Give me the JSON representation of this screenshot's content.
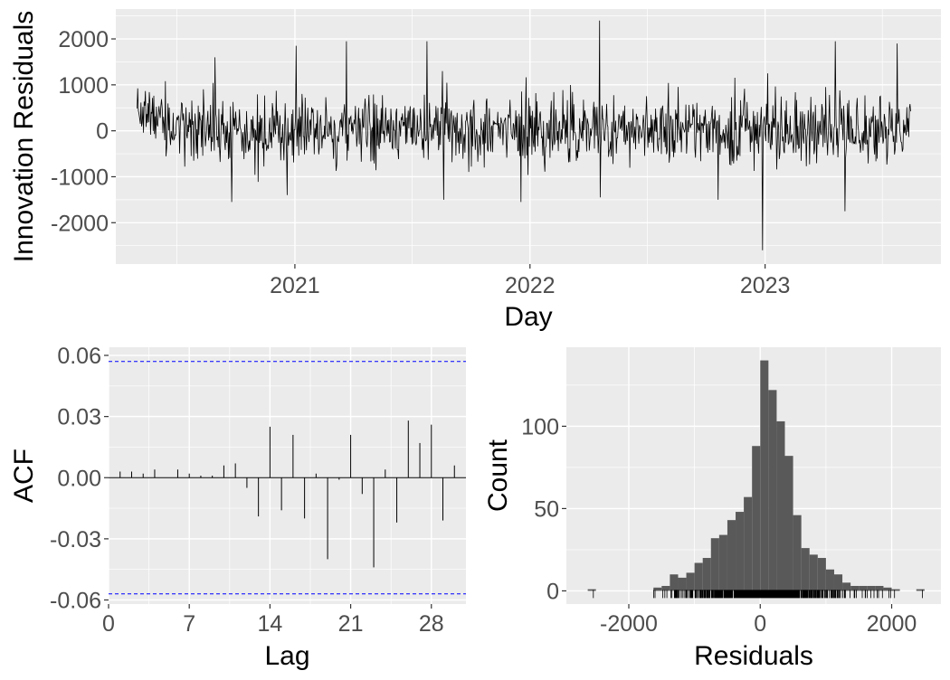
{
  "colors": {
    "panel_bg": "#ebebeb",
    "grid": "#ffffff",
    "line": "#000000",
    "bar": "#595959",
    "ci": "#0000ff",
    "tick_text": "#4d4d4d"
  },
  "chart_data": [
    {
      "type": "line",
      "xlabel": "Day",
      "ylabel": "Innovation Residuals",
      "xlim": [
        "2020-03-29",
        "2023-10-01"
      ],
      "ylim": [
        -2900,
        2650
      ],
      "x_ticks": [
        "2021",
        "2022",
        "2023"
      ],
      "y_ticks": [
        "-2000",
        "-1000",
        "0",
        "1000",
        "2000"
      ],
      "series": [
        {
          "values_start": "2020-05-01",
          "values_end": "2023-08-15",
          "frequency": "daily"
        }
      ],
      "spikes": [
        {
          "date": "2020-08-30",
          "value": 1600
        },
        {
          "date": "2020-09-25",
          "value": -1550
        },
        {
          "date": "2020-12-20",
          "value": -1400
        },
        {
          "date": "2021-01-03",
          "value": 1850
        },
        {
          "date": "2021-03-22",
          "value": 1950
        },
        {
          "date": "2021-07-25",
          "value": 1950
        },
        {
          "date": "2021-08-20",
          "value": -1500
        },
        {
          "date": "2021-12-18",
          "value": -1550
        },
        {
          "date": "2022-04-19",
          "value": 2400
        },
        {
          "date": "2022-04-20",
          "value": -1450
        },
        {
          "date": "2022-10-20",
          "value": -1500
        },
        {
          "date": "2022-12-28",
          "value": -2600
        },
        {
          "date": "2023-01-05",
          "value": 1250
        },
        {
          "date": "2023-04-20",
          "value": 1950
        },
        {
          "date": "2023-05-05",
          "value": -1750
        },
        {
          "date": "2023-07-25",
          "value": 1900
        }
      ]
    },
    {
      "type": "bar",
      "xlabel": "Lag",
      "ylabel": "ACF",
      "xlim": [
        0,
        31
      ],
      "ylim": [
        -0.062,
        0.064
      ],
      "x_ticks": [
        "0",
        "7",
        "14",
        "21",
        "28"
      ],
      "y_ticks": [
        "-0.06",
        "-0.03",
        "0.00",
        "0.03",
        "0.06"
      ],
      "confidence_bound": 0.057,
      "lags": [
        1,
        2,
        3,
        4,
        5,
        6,
        7,
        8,
        9,
        10,
        11,
        12,
        13,
        14,
        15,
        16,
        17,
        18,
        19,
        20,
        21,
        22,
        23,
        24,
        25,
        26,
        27,
        28,
        29,
        30
      ],
      "values": [
        0.003,
        0.003,
        0.002,
        0.004,
        0.0,
        0.004,
        0.002,
        0.001,
        0.001,
        0.006,
        0.007,
        -0.005,
        -0.019,
        0.025,
        -0.016,
        0.021,
        -0.02,
        0.002,
        -0.04,
        -0.001,
        0.021,
        -0.008,
        -0.044,
        0.004,
        -0.022,
        0.028,
        0.017,
        0.026,
        -0.021,
        0.006
      ]
    },
    {
      "type": "bar",
      "xlabel": "Residuals",
      "ylabel": "Count",
      "xlim": [
        -2950,
        2750
      ],
      "ylim": [
        -8,
        148
      ],
      "x_ticks": [
        "-2000",
        "0",
        "2000"
      ],
      "y_ticks": [
        "0",
        "50",
        "100"
      ],
      "bin_width": 125,
      "bin_starts": [
        -2625,
        -2500,
        -2375,
        -2250,
        -2125,
        -2000,
        -1875,
        -1750,
        -1625,
        -1500,
        -1375,
        -1250,
        -1125,
        -1000,
        -875,
        -750,
        -625,
        -500,
        -375,
        -250,
        -125,
        0,
        125,
        250,
        375,
        500,
        625,
        750,
        875,
        1000,
        1125,
        1250,
        1375,
        1500,
        1625,
        1750,
        1875,
        2000,
        2125,
        2250,
        2375
      ],
      "values": [
        1,
        0,
        0,
        0,
        0,
        0,
        0,
        0,
        2,
        3,
        10,
        8,
        11,
        17,
        20,
        32,
        34,
        43,
        48,
        57,
        88,
        140,
        122,
        103,
        82,
        46,
        26,
        22,
        20,
        13,
        10,
        5,
        3,
        3,
        3,
        3,
        2,
        1,
        0,
        0,
        1
      ]
    }
  ]
}
